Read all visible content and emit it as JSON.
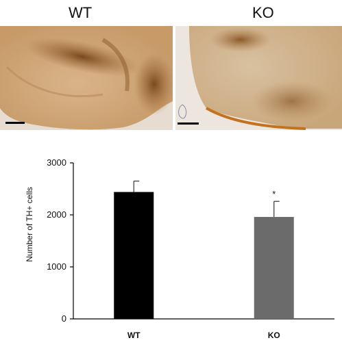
{
  "panels": [
    {
      "label": "WT"
    },
    {
      "label": "KO"
    }
  ],
  "chart_data": {
    "type": "bar",
    "categories": [
      "WT",
      "KO"
    ],
    "values": [
      2440,
      1960
    ],
    "errors": [
      210,
      300
    ],
    "colors": [
      "#000000",
      "#6b6b6b"
    ],
    "significance": [
      "",
      "*"
    ],
    "ylabel": "Number of TH+ cells",
    "xlabel": "",
    "ylim": [
      0,
      3000
    ],
    "yticks": [
      0,
      1000,
      2000,
      3000
    ]
  }
}
